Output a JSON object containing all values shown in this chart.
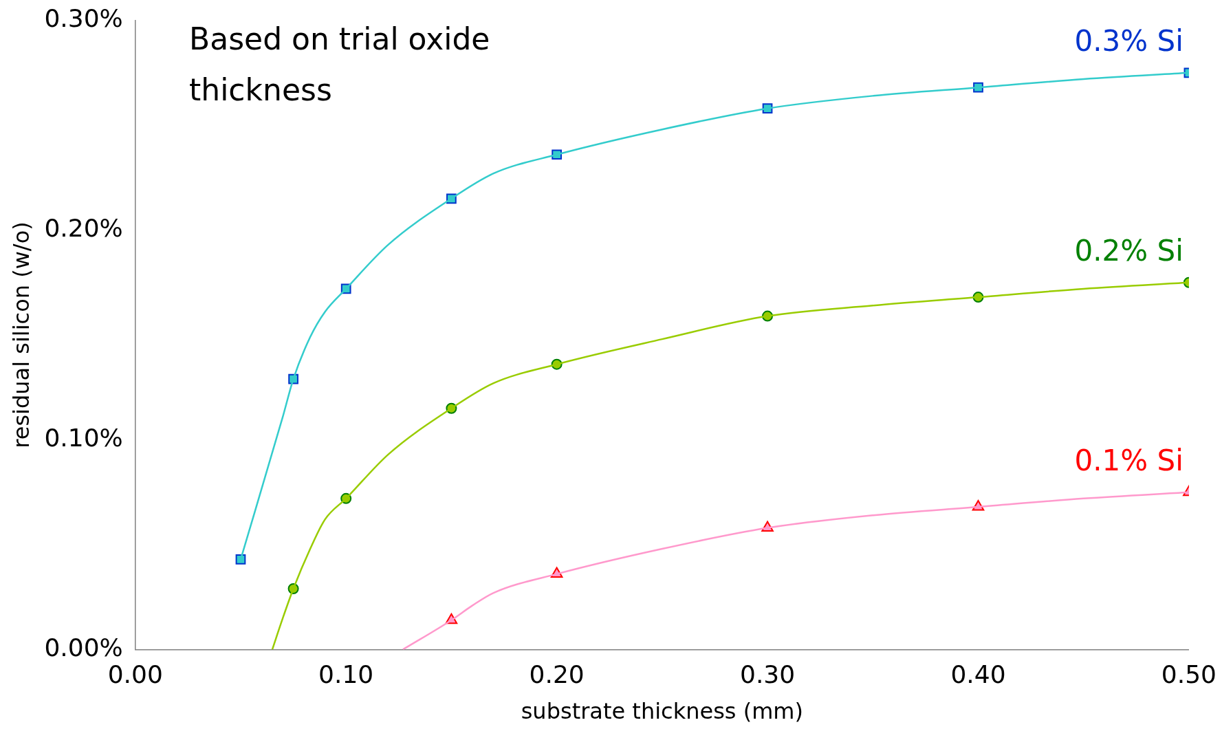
{
  "chart_data": {
    "type": "line",
    "xlabel": "substrate thickness (mm)",
    "ylabel": "residual silicon (w/o)",
    "annotations": [
      "Based on trial oxide thickness"
    ],
    "xlim": [
      0,
      0.5
    ],
    "xticks": [
      {
        "value": 0,
        "label": "0.00"
      },
      {
        "value": 0.1,
        "label": "0.10"
      },
      {
        "value": 0.2,
        "label": "0.20"
      },
      {
        "value": 0.3,
        "label": "0.30"
      },
      {
        "value": 0.4,
        "label": "0.40"
      },
      {
        "value": 0.5,
        "label": "0.50"
      }
    ],
    "ylim": [
      0,
      0.3
    ],
    "yticks": [
      {
        "value": 0,
        "label": "0.00%"
      },
      {
        "value": 0.1,
        "label": "0.10%"
      },
      {
        "value": 0.2,
        "label": "0.20%"
      },
      {
        "value": 0.3,
        "label": "0.30%"
      }
    ],
    "grid": false,
    "legend": false,
    "series": [
      {
        "marker": "none",
        "color": "#33cccc",
        "x": [
          0.05,
          0.07,
          0.075,
          0.083,
          0.09,
          0.1,
          0.12,
          0.15,
          0.17,
          0.2,
          0.25,
          0.3,
          0.35,
          0.4,
          0.45,
          0.5
        ],
        "values": [
          0.043,
          0.111,
          0.129,
          0.149,
          0.161,
          0.172,
          0.193,
          0.215,
          0.227,
          0.236,
          0.248,
          0.258,
          0.264,
          0.268,
          0.272,
          0.275
        ]
      },
      {
        "marker": "none",
        "color": "#99cc00",
        "x": [
          0.065,
          0.07,
          0.075,
          0.083,
          0.09,
          0.1,
          0.12,
          0.15,
          0.17,
          0.2,
          0.25,
          0.3,
          0.35,
          0.4,
          0.45,
          0.5
        ],
        "values": [
          0,
          0.015,
          0.029,
          0.048,
          0.062,
          0.072,
          0.093,
          0.115,
          0.127,
          0.136,
          0.148,
          0.159,
          0.164,
          0.168,
          0.172,
          0.175
        ]
      },
      {
        "marker": "none",
        "color": "#ff99cc",
        "x": [
          0.127,
          0.15,
          0.16,
          0.17,
          0.2,
          0.25,
          0.3,
          0.35,
          0.4,
          0.45,
          0.5
        ],
        "values": [
          0,
          0.014,
          0.021,
          0.027,
          0.036,
          0.048,
          0.058,
          0.064,
          0.068,
          0.072,
          0.075
        ]
      },
      {
        "type": "scatter",
        "marker": "square",
        "name": "0.3% Si",
        "color": "#0033cc",
        "x": [
          0.05,
          0.075,
          0.1,
          0.15,
          0.2,
          0.3,
          0.4,
          0.5
        ],
        "values": [
          0.043,
          0.129,
          0.172,
          0.215,
          0.236,
          0.258,
          0.268,
          0.275
        ]
      },
      {
        "type": "scatter",
        "marker": "circle",
        "name": "0.2% Si",
        "color": "#008000",
        "x": [
          0.075,
          0.1,
          0.15,
          0.2,
          0.3,
          0.4,
          0.5
        ],
        "values": [
          0.029,
          0.072,
          0.115,
          0.136,
          0.159,
          0.168,
          0.175
        ]
      },
      {
        "type": "scatter",
        "marker": "triangle",
        "name": "0.1% Si",
        "color": "#ff0000",
        "x": [
          0.15,
          0.2,
          0.3,
          0.4,
          0.5
        ],
        "values": [
          0.014,
          0.036,
          0.058,
          0.068,
          0.075
        ]
      }
    ]
  }
}
